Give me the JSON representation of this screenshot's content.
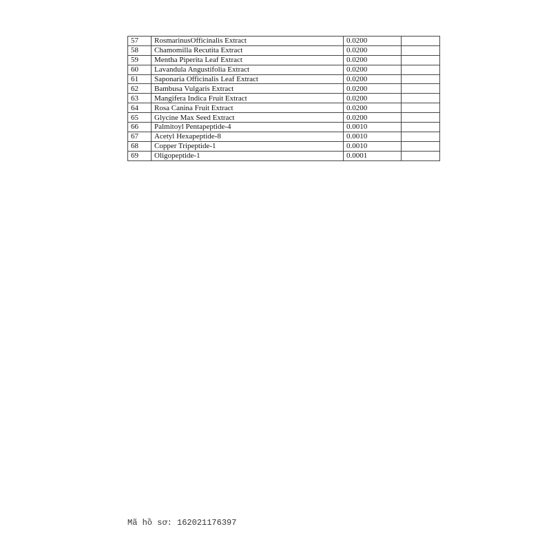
{
  "table": {
    "rows": [
      {
        "no": "57",
        "name": "RosmarinusOfficinalis Extract",
        "value": "0.0200"
      },
      {
        "no": "58",
        "name": "Chamomilla Recutita Extract",
        "value": "0.0200"
      },
      {
        "no": "59",
        "name": "Mentha Piperita Leaf Extract",
        "value": "0.0200"
      },
      {
        "no": "60",
        "name": "Lavandula Angustifolia Extract",
        "value": "0.0200"
      },
      {
        "no": "61",
        "name": "Saponaria Officinalis Leaf Extract",
        "value": "0.0200"
      },
      {
        "no": "62",
        "name": "Bambusa Vulgaris Extract",
        "value": "0.0200"
      },
      {
        "no": "63",
        "name": "Mangifera Indica Fruit Extract",
        "value": "0.0200"
      },
      {
        "no": "64",
        "name": "Rosa Canina Fruit Extract",
        "value": "0.0200"
      },
      {
        "no": "65",
        "name": "Glycine Max Seed Extract",
        "value": "0.0200"
      },
      {
        "no": "66",
        "name": "Palmitoyl Pentapeptide-4",
        "value": "0.0010"
      },
      {
        "no": "67",
        "name": "Acetyl Hexapeptide-8",
        "value": "0.0010"
      },
      {
        "no": "68",
        "name": "Copper Tripeptide-1",
        "value": "0.0010"
      },
      {
        "no": "69",
        "name": "Oligopeptide-1",
        "value": "0.0001"
      }
    ]
  },
  "footer": {
    "record_code": "Mã hồ sơ: 162021176397"
  }
}
